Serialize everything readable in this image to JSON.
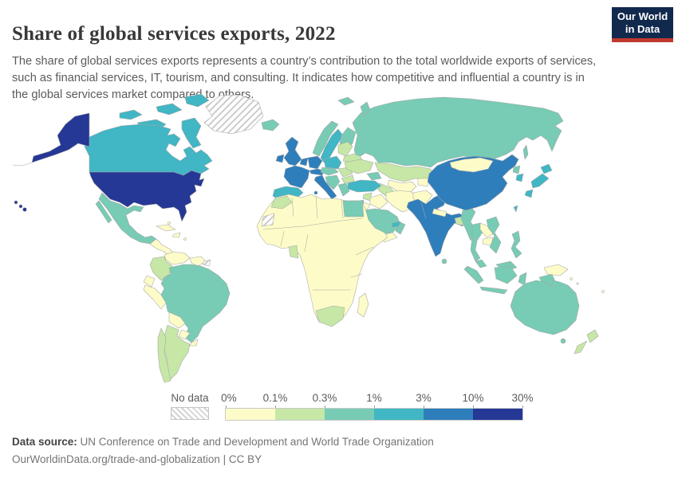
{
  "header": {
    "title": "Share of global services exports, 2022",
    "subtitle": "The share of global services exports represents a country’s contribution to the total worldwide exports of services, such as financial services, IT, tourism, and consulting. It indicates how competitive and influential a country is in the global services market compared to others.",
    "logo": {
      "line1": "Our World",
      "line2": "in Data",
      "navy": "#12294e",
      "red": "#c0392f"
    }
  },
  "legend": {
    "no_data_label": "No data",
    "ticks": [
      "0%",
      "0.1%",
      "0.3%",
      "1%",
      "3%",
      "10%",
      "30%"
    ]
  },
  "footer": {
    "source_label": "Data source:",
    "source_text": " UN Conference on Trade and Development and World Trade Organization",
    "license_line": "OurWorldinData.org/trade-and-globalization | CC BY"
  },
  "chart_data": {
    "type": "choropleth",
    "title": "Share of global services exports, 2022",
    "unit": "%",
    "legend_position": "bottom",
    "scale": "log-binned",
    "bin_edges_percent": [
      0,
      0.1,
      0.3,
      1,
      3,
      10,
      30
    ],
    "bins": [
      {
        "key": "b1",
        "range": "0%–0.1%",
        "color": "#fdfcc8"
      },
      {
        "key": "b2",
        "range": "0.1%–0.3%",
        "color": "#c6e7a6"
      },
      {
        "key": "b3",
        "range": "0.3%–1%",
        "color": "#78cbb4"
      },
      {
        "key": "b4",
        "range": "1%–3%",
        "color": "#41b6c4"
      },
      {
        "key": "b5",
        "range": "3%–10%",
        "color": "#2f7ebc"
      },
      {
        "key": "b6",
        "range": "10%–30%",
        "color": "#253896"
      }
    ],
    "no_data_color": "hatch",
    "countries": {
      "greenland": "no-data",
      "western-sahara": "no-data",
      "french-guiana": "no-data",
      "united-states": "b6",
      "canada": "b4",
      "mexico": "b3",
      "central-america": "b1",
      "cuba": "b1",
      "hispaniola": "b1",
      "caribbean": "b1",
      "colombia": "b2",
      "venezuela": "b1",
      "guyanas": "b1",
      "ecuador": "b1",
      "peru": "b1",
      "brazil": "b3",
      "bolivia": "b1",
      "paraguay": "b1",
      "uruguay": "b1",
      "argentina": "b2",
      "chile": "b2",
      "iceland": "b3",
      "united-kingdom": "b5",
      "ireland": "b5",
      "norway": "b3",
      "svalbard": "b3",
      "sweden": "b4",
      "finland": "b3",
      "denmark": "b4",
      "france": "b5",
      "germany": "b5",
      "benelux": "b5",
      "alpine": "b5",
      "italy": "b5",
      "spain": "b4",
      "poland": "b4",
      "baltics": "b2",
      "belarus": "b2",
      "ukraine": "b2",
      "czech-hungary": "b3",
      "romania": "b2",
      "bulgaria": "b2",
      "balkans": "b3",
      "greece": "b3",
      "russia": "b3",
      "kazakhstan": "b2",
      "uzbekistan": "b1",
      "turkmenistan": "b2",
      "kyrgyzstan-tajikistan": "b1",
      "caucasus": "b3",
      "turkey": "b4",
      "syria": "b2",
      "iraq": "b1",
      "israel": "b3",
      "jordan": "b1",
      "saudi-arabia": "b3",
      "yemen": "b1",
      "oman": "b3",
      "uae": "b4",
      "iran": "b1",
      "afghanistan": "b1",
      "india": "b5",
      "nepal": "b1",
      "bangladesh": "b2",
      "sri-lanka": "b3",
      "myanmar": "b3",
      "thailand": "b3",
      "laos": "b1",
      "cambodia": "b1",
      "vietnam": "b3",
      "malaysia": "b3",
      "indonesia": "b3",
      "philippines": "b3",
      "timor": "b1",
      "china": "b5",
      "mongolia": "b1",
      "north-korea": "b3",
      "south-korea": "b4",
      "japan": "b4",
      "taiwan": "b4",
      "africa-other": "b1",
      "morocco": "b2",
      "egypt": "b3",
      "ghana": "b2",
      "south-africa": "b2",
      "madagascar": "b1",
      "australia": "b3",
      "papua-new-guinea": "b1",
      "new-zealand": "b2",
      "fiji": "b1",
      "solomon-islands": "b1"
    }
  }
}
